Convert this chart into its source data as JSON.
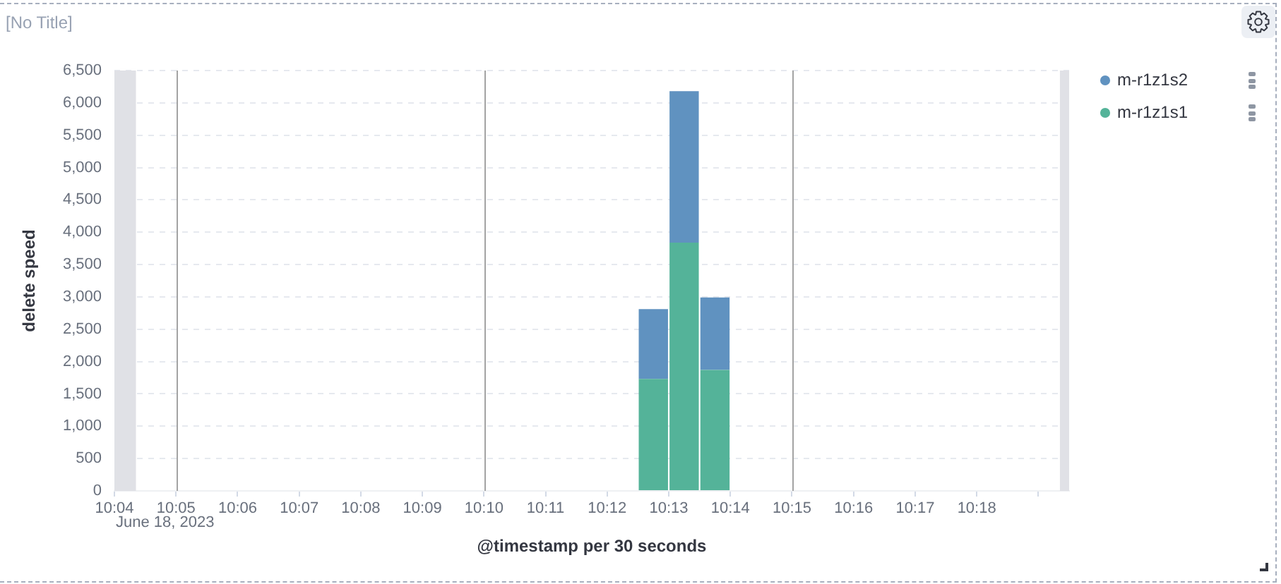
{
  "chart_data": {
    "type": "bar",
    "title": "[No Title]",
    "xlabel": "@timestamp per 30 seconds",
    "ylabel": "delete speed",
    "x": [
      "2023-06-18T10:12:45",
      "2023-06-18T10:13:15",
      "2023-06-18T10:13:45"
    ],
    "series": [
      {
        "name": "m-r1z1s1",
        "color": "#54b399",
        "values": [
          1730,
          3840,
          1870
        ]
      },
      {
        "name": "m-r1z1s2",
        "color": "#6092c0",
        "values": [
          1080,
          2340,
          1120
        ]
      }
    ],
    "stacked": true,
    "xlim": [
      "2023-06-18T10:04:00",
      "2023-06-18T10:19:30"
    ],
    "xticks": [
      {
        "value": "2023-06-18T10:04",
        "label": "10:04"
      },
      {
        "value": "2023-06-18T10:05",
        "label": "10:05"
      },
      {
        "value": "2023-06-18T10:06",
        "label": "10:06"
      },
      {
        "value": "2023-06-18T10:07",
        "label": "10:07"
      },
      {
        "value": "2023-06-18T10:08",
        "label": "10:08"
      },
      {
        "value": "2023-06-18T10:09",
        "label": "10:09"
      },
      {
        "value": "2023-06-18T10:10",
        "label": "10:10"
      },
      {
        "value": "2023-06-18T10:11",
        "label": "10:11"
      },
      {
        "value": "2023-06-18T10:12",
        "label": "10:12"
      },
      {
        "value": "2023-06-18T10:13",
        "label": "10:13"
      },
      {
        "value": "2023-06-18T10:14",
        "label": "10:14"
      },
      {
        "value": "2023-06-18T10:15",
        "label": "10:15"
      },
      {
        "value": "2023-06-18T10:16",
        "label": "10:16"
      },
      {
        "value": "2023-06-18T10:17",
        "label": "10:17"
      },
      {
        "value": "2023-06-18T10:18",
        "label": "10:18"
      },
      {
        "value": "2023-06-18T10:19",
        "label": null
      }
    ],
    "ylim": [
      0,
      6500
    ],
    "yticks": [
      0,
      500,
      {
        "value": 1000,
        "label": "1,000"
      },
      {
        "value": 1500,
        "label": "1,500"
      },
      {
        "value": 2000,
        "label": "2,000"
      },
      {
        "value": 2500,
        "label": "2,500"
      },
      {
        "value": 3000,
        "label": "3,000"
      },
      {
        "value": 3500,
        "label": "3,500"
      },
      {
        "value": 4000,
        "label": "4,000"
      },
      {
        "value": 4500,
        "label": "4,500"
      },
      {
        "value": 5000,
        "label": "5,000"
      },
      {
        "value": 5500,
        "label": "5,500"
      },
      {
        "value": 6000,
        "label": "6,000"
      },
      {
        "value": 6500,
        "label": "6,500"
      }
    ],
    "grid": "y",
    "legend": "top right",
    "ref_lines": [
      {
        "axis": "x",
        "value": "2023-06-18T10:05",
        "color": "#a3a3a3"
      },
      {
        "axis": "x",
        "value": "2023-06-18T10:10",
        "color": "#a3a3a3"
      },
      {
        "axis": "x",
        "value": "2023-06-18T10:15",
        "color": "#a3a3a3"
      }
    ],
    "bands": [
      {
        "axis": "x",
        "from": "2023-06-18T10:04:00",
        "to": "2023-06-18T10:04:21",
        "color": "#e0e1e6"
      },
      {
        "axis": "x",
        "from": "2023-06-18T10:19:21",
        "to": "2023-06-18T10:19:30",
        "color": "#e0e1e6"
      }
    ],
    "annotations": [
      "June 18, 2023"
    ]
  }
}
